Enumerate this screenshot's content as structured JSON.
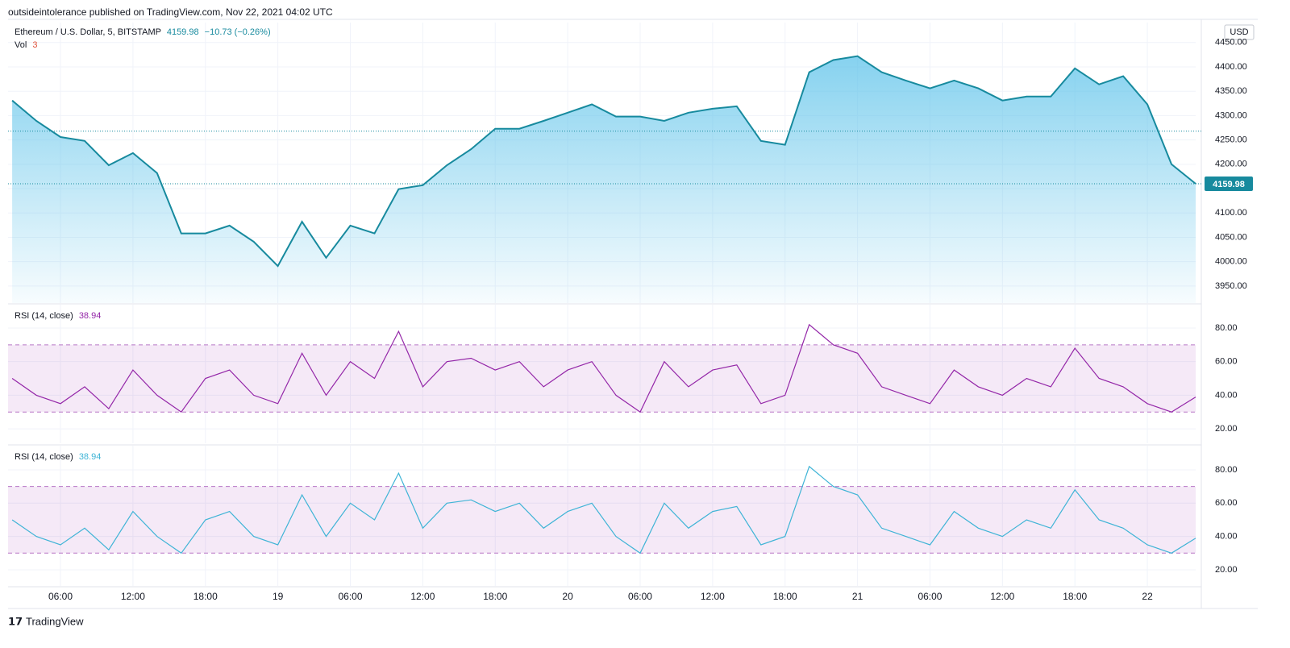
{
  "header": {
    "published": "outsideintolerance published on TradingView.com, Nov 22, 2021 04:02 UTC",
    "symbol": "Ethereum / U.S. Dollar, 5, BITSTAMP",
    "change": "−10.73 (−0.26%)",
    "vol_label": "Vol",
    "vol_value": "3",
    "currency": "USD",
    "brand": "TradingView"
  },
  "chart_data": [
    {
      "type": "area",
      "color": "#178a9e",
      "x": [
        2,
        4,
        6,
        8,
        10,
        12,
        14,
        16,
        18,
        20,
        22,
        24,
        26,
        28,
        30,
        32,
        34,
        36,
        38,
        40,
        42,
        44,
        46,
        48,
        50,
        52,
        54,
        56,
        58,
        60,
        62,
        64,
        66,
        68,
        70,
        72,
        74,
        76,
        78,
        80,
        82,
        84,
        86,
        88,
        90,
        92,
        94,
        96,
        98,
        100
      ],
      "values": [
        4331,
        4289,
        4256,
        4248,
        4198,
        4223,
        4182,
        4058,
        4058,
        4074,
        4041,
        3991,
        4082,
        4008,
        4074,
        4058,
        4149,
        4157,
        4198,
        4231,
        4273,
        4273,
        4289,
        4306,
        4323,
        4298,
        4298,
        4289,
        4306,
        4314,
        4319,
        4248,
        4240,
        4389,
        4414,
        4422,
        4389,
        4372,
        4356,
        4372,
        4356,
        4331,
        4339,
        4339,
        4397,
        4364,
        4381,
        4323,
        4200,
        4159.98
      ],
      "reference_line": 4268,
      "xlim": [
        1.66,
        100
      ],
      "ylim": [
        3915,
        4491
      ],
      "xticks": [
        {
          "value": 6,
          "label": "06:00"
        },
        {
          "value": 12,
          "label": "12:00"
        },
        {
          "value": 18,
          "label": "18:00"
        },
        {
          "value": 24,
          "label": "19"
        },
        {
          "value": 30,
          "label": "06:00"
        },
        {
          "value": 36,
          "label": "12:00"
        },
        {
          "value": 42,
          "label": "18:00"
        },
        {
          "value": 48,
          "label": "20"
        },
        {
          "value": 54,
          "label": "06:00"
        },
        {
          "value": 60,
          "label": "12:00"
        },
        {
          "value": 66,
          "label": "18:00"
        },
        {
          "value": 72,
          "label": "21"
        },
        {
          "value": 78,
          "label": "06:00"
        },
        {
          "value": 84,
          "label": "12:00"
        },
        {
          "value": 90,
          "label": "18:00"
        },
        {
          "value": 96,
          "label": "22"
        }
      ],
      "yticks": [
        {
          "value": 3950,
          "label": "3950.00"
        },
        {
          "value": 4000,
          "label": "4000.00"
        },
        {
          "value": 4050,
          "label": "4050.00"
        },
        {
          "value": 4100,
          "label": "4100.00"
        },
        {
          "value": 4150,
          "label": "4150.00"
        },
        {
          "value": 4200,
          "label": "4200.00"
        },
        {
          "value": 4250,
          "label": "4250.00"
        },
        {
          "value": 4300,
          "label": "4300.00"
        },
        {
          "value": 4350,
          "label": "4350.00"
        },
        {
          "value": 4400,
          "label": "4400.00"
        },
        {
          "value": 4450,
          "label": "4450.00"
        }
      ]
    },
    {
      "type": "line",
      "title": "RSI (14, close)",
      "color": "#9427a8",
      "x": [
        2,
        4,
        6,
        8,
        10,
        12,
        14,
        16,
        18,
        20,
        22,
        24,
        26,
        28,
        30,
        32,
        34,
        36,
        38,
        40,
        42,
        44,
        46,
        48,
        50,
        52,
        54,
        56,
        58,
        60,
        62,
        64,
        66,
        68,
        70,
        72,
        74,
        76,
        78,
        80,
        82,
        84,
        86,
        88,
        90,
        92,
        94,
        96,
        98,
        100
      ],
      "values": [
        50,
        40,
        35,
        45,
        32,
        55,
        40,
        30,
        50,
        55,
        40,
        35,
        65,
        40,
        60,
        50,
        78,
        45,
        60,
        62,
        55,
        60,
        45,
        55,
        60,
        40,
        30,
        60,
        45,
        55,
        58,
        35,
        40,
        82,
        70,
        65,
        45,
        40,
        35,
        55,
        45,
        40,
        50,
        45,
        68,
        50,
        45,
        35,
        30,
        38.94
      ],
      "bands": [
        30,
        70
      ],
      "xlim": [
        1.66,
        100
      ],
      "ylim": [
        11.4,
        93.9
      ],
      "yticks": [
        {
          "value": 20,
          "label": "20.00"
        },
        {
          "value": 40,
          "label": "40.00"
        },
        {
          "value": 60,
          "label": "60.00"
        },
        {
          "value": 80,
          "label": "80.00"
        }
      ]
    },
    {
      "type": "line",
      "title": "RSI (14, close)",
      "color": "#3fb4d6",
      "x": [
        2,
        4,
        6,
        8,
        10,
        12,
        14,
        16,
        18,
        20,
        22,
        24,
        26,
        28,
        30,
        32,
        34,
        36,
        38,
        40,
        42,
        44,
        46,
        48,
        50,
        52,
        54,
        56,
        58,
        60,
        62,
        64,
        66,
        68,
        70,
        72,
        74,
        76,
        78,
        80,
        82,
        84,
        86,
        88,
        90,
        92,
        94,
        96,
        98,
        100
      ],
      "values": [
        50,
        40,
        35,
        45,
        32,
        55,
        40,
        30,
        50,
        55,
        40,
        35,
        65,
        40,
        60,
        50,
        78,
        45,
        60,
        62,
        55,
        60,
        45,
        55,
        60,
        40,
        30,
        60,
        45,
        55,
        58,
        35,
        40,
        82,
        70,
        65,
        45,
        40,
        35,
        55,
        45,
        40,
        50,
        45,
        68,
        50,
        45,
        35,
        30,
        38.94
      ],
      "bands": [
        30,
        70
      ],
      "xlim": [
        1.66,
        100
      ],
      "ylim": [
        10.3,
        94.5
      ],
      "yticks": [
        {
          "value": 20,
          "label": "20.00"
        },
        {
          "value": 40,
          "label": "40.00"
        },
        {
          "value": 60,
          "label": "60.00"
        },
        {
          "value": 80,
          "label": "80.00"
        }
      ]
    }
  ]
}
